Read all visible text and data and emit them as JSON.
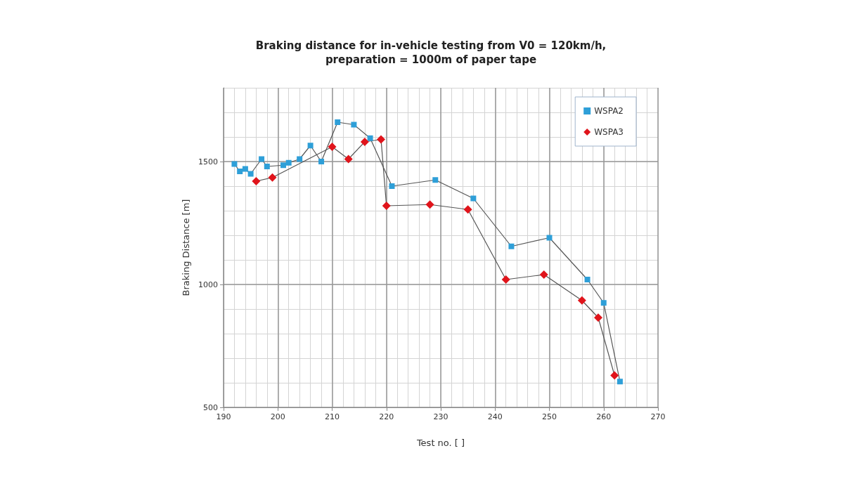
{
  "chart_data": {
    "type": "line",
    "title": "Braking distance for in-vehicle testing from V0 = 120km/h,\npreparation = 1000m of paper tape",
    "xlabel": "Test no. [ ]",
    "ylabel": "Braking Distance [m]",
    "xlim": [
      190,
      270
    ],
    "xticks": [
      190,
      200,
      210,
      220,
      230,
      240,
      250,
      260,
      270
    ],
    "ylim": [
      500,
      1800
    ],
    "yticks": [
      500,
      1000,
      1500
    ],
    "grid": true,
    "legend": "top right",
    "line_style": "solid",
    "series": [
      {
        "name": "WSPA2",
        "color": "#2e9fd8",
        "marker": "square",
        "x": [
          192,
          193,
          194,
          195,
          197,
          198,
          201,
          202,
          204,
          206,
          208,
          211,
          214,
          217,
          221,
          229,
          236,
          243,
          250,
          257,
          260,
          263
        ],
        "values": [
          1490,
          1460,
          1470,
          1450,
          1510,
          1480,
          1485,
          1495,
          1510,
          1565,
          1500,
          1660,
          1650,
          1595,
          1400,
          1425,
          1350,
          1155,
          1190,
          1020,
          925,
          605
        ]
      },
      {
        "name": "WSPA3",
        "color": "#e0141b",
        "marker": "diamond",
        "x": [
          196,
          199,
          210,
          213,
          216,
          219,
          220,
          228,
          235,
          242,
          249,
          256,
          259,
          262
        ],
        "values": [
          1420,
          1435,
          1560,
          1510,
          1580,
          1590,
          1320,
          1325,
          1305,
          1020,
          1040,
          935,
          865,
          630
        ]
      }
    ]
  }
}
